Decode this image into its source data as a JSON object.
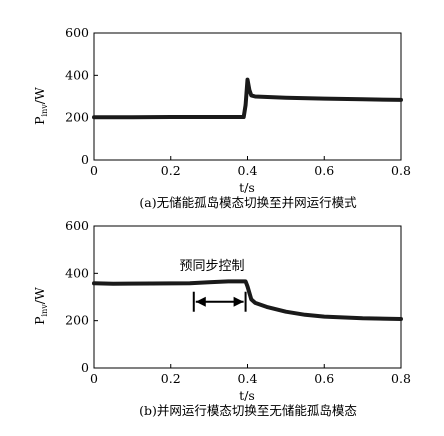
{
  "chart_data": [
    {
      "type": "line",
      "caption": "(a)无储能孤岛模态切换至并网运行模式",
      "xlabel": "t/s",
      "ylabel_main": "P",
      "ylabel_sub": "inv",
      "ylabel_unit": "/W",
      "xlim": [
        0,
        0.8
      ],
      "ylim": [
        0,
        600
      ],
      "xticks": [
        "0",
        "0.2",
        "0.4",
        "0.6",
        "0.8"
      ],
      "yticks": [
        "0",
        "200",
        "400",
        "600"
      ],
      "xtick_values": [
        0,
        0.2,
        0.4,
        0.6,
        0.8
      ],
      "ytick_values": [
        0,
        200,
        400,
        600
      ],
      "grid": false,
      "series": [
        {
          "color": "#1a1a1a",
          "x": [
            0,
            0.1,
            0.2,
            0.3,
            0.39,
            0.395,
            0.4,
            0.405,
            0.41,
            0.42,
            0.5,
            0.6,
            0.7,
            0.8
          ],
          "y": [
            202,
            202,
            203,
            203,
            203,
            260,
            380,
            330,
            305,
            300,
            294,
            290,
            287,
            284
          ]
        }
      ]
    },
    {
      "type": "line",
      "caption": "(b)并网运行模态切换至无储能孤岛模态",
      "xlabel": "t/s",
      "ylabel_main": "P",
      "ylabel_sub": "inv",
      "ylabel_unit": "/W",
      "xlim": [
        0,
        0.8
      ],
      "ylim": [
        0,
        600
      ],
      "xticks": [
        "0",
        "0.2",
        "0.4",
        "0.6",
        "0.8"
      ],
      "yticks": [
        "0",
        "200",
        "400",
        "600"
      ],
      "xtick_values": [
        0,
        0.2,
        0.4,
        0.6,
        0.8
      ],
      "ytick_values": [
        0,
        200,
        400,
        600
      ],
      "grid": false,
      "annotation": {
        "text": "预同步控制",
        "arrow_from_x": 0.26,
        "arrow_to_x": 0.395,
        "arrow_y": 280
      },
      "series": [
        {
          "color": "#1a1a1a",
          "x": [
            0,
            0.05,
            0.15,
            0.25,
            0.3,
            0.35,
            0.395,
            0.4,
            0.41,
            0.42,
            0.45,
            0.5,
            0.55,
            0.6,
            0.7,
            0.8
          ],
          "y": [
            358,
            356,
            357,
            358,
            362,
            366,
            366,
            345,
            290,
            275,
            258,
            238,
            225,
            217,
            210,
            207
          ]
        }
      ]
    }
  ]
}
